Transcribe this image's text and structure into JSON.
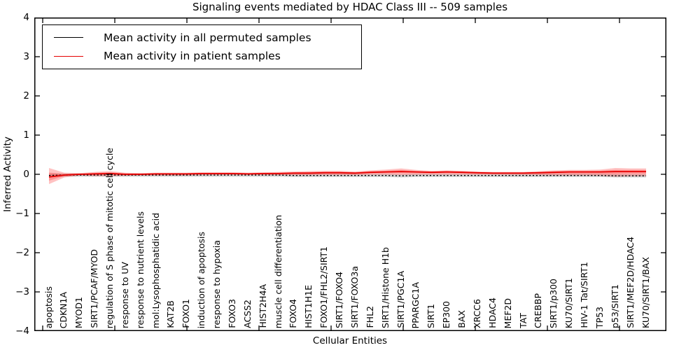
{
  "title": "Signaling events mediated by HDAC Class III -- 509 samples",
  "legend": {
    "items": [
      {
        "label": "Mean activity in all permuted samples",
        "color": "#000000"
      },
      {
        "label": "Mean activity in patient samples",
        "color": "#e60000"
      }
    ]
  },
  "chart_data": {
    "type": "line",
    "title": "Signaling events mediated by HDAC Class III -- 509 samples",
    "xlabel": "Cellular Entities",
    "ylabel": "Inferred Activity",
    "ylim": [
      -4,
      4
    ],
    "grid": false,
    "legend_position": "upper left",
    "yticks": [
      {
        "value": 4,
        "label": "4"
      },
      {
        "value": 3,
        "label": "3"
      },
      {
        "value": 2,
        "label": "2"
      },
      {
        "value": 1,
        "label": "1"
      },
      {
        "value": 0,
        "label": "0"
      },
      {
        "value": -1,
        "label": "−1"
      },
      {
        "value": -2,
        "label": "−2"
      },
      {
        "value": -3,
        "label": "−3"
      },
      {
        "value": -4,
        "label": "−4"
      }
    ],
    "categories": [
      "apoptosis",
      "CDKN1A",
      "MYOD1",
      "SIRT1/PCAF/MYOD",
      "regulation of S phase of mitotic cell cycle",
      "response to UV",
      "response to nutrient levels",
      "mol:Lysophosphatidic acid",
      "KAT2B",
      "FOXO1",
      "induction of apoptosis",
      "response to hypoxia",
      "FOXO3",
      "ACSS2",
      "HIST2H4A",
      "muscle cell differentiation",
      "FOXO4",
      "HIST1H1E",
      "FOXO1/FHL2/SIRT1",
      "SIRT1/FOXO4",
      "SIRT1/FOXO3a",
      "FHL2",
      "SIRT1/Histone H1b",
      "SIRT1/PGC1A",
      "PPARGC1A",
      "SIRT1",
      "EP300",
      "BAX",
      "XRCC6",
      "HDAC4",
      "MEF2D",
      "TAT",
      "CREBBP",
      "SIRT1/p300",
      "KU70/SIRT1",
      "HIV-1 Tat/SIRT1",
      "TP53",
      "p53/SIRT1",
      "SIRT1/MEF2D/HDAC4",
      "KU70/SIRT1/BAX"
    ],
    "series": [
      {
        "name": "Mean activity in all permuted samples",
        "color": "#000000",
        "linestyle": "dotted",
        "band_halfwidth": 0.04,
        "band_color": "rgba(110,110,110,0.30)",
        "values": [
          -0.03,
          -0.02,
          -0.02,
          -0.02,
          -0.02,
          -0.02,
          -0.02,
          -0.02,
          -0.02,
          -0.02,
          -0.02,
          -0.02,
          -0.02,
          -0.02,
          -0.02,
          -0.02,
          -0.03,
          -0.03,
          -0.03,
          -0.03,
          -0.03,
          -0.03,
          -0.03,
          -0.04,
          -0.03,
          -0.03,
          -0.03,
          -0.03,
          -0.03,
          -0.03,
          -0.03,
          -0.03,
          -0.03,
          -0.03,
          -0.03,
          -0.03,
          -0.03,
          -0.04,
          -0.04,
          -0.04
        ]
      },
      {
        "name": "Mean activity in patient samples",
        "color": "#e60000",
        "linestyle": "solid",
        "band_color": "rgba(255,20,20,0.26)",
        "values": [
          -0.07,
          -0.02,
          0.0,
          0.01,
          0.02,
          0.0,
          0.0,
          0.01,
          0.01,
          0.01,
          0.02,
          0.02,
          0.02,
          0.01,
          0.02,
          0.02,
          0.03,
          0.03,
          0.04,
          0.04,
          0.03,
          0.05,
          0.06,
          0.07,
          0.06,
          0.05,
          0.06,
          0.05,
          0.04,
          0.03,
          0.03,
          0.03,
          0.04,
          0.05,
          0.06,
          0.06,
          0.06,
          0.07,
          0.07,
          0.07
        ],
        "band_upper": [
          0.16,
          0.04,
          0.03,
          0.06,
          0.08,
          0.04,
          0.03,
          0.04,
          0.04,
          0.04,
          0.05,
          0.05,
          0.05,
          0.04,
          0.05,
          0.06,
          0.07,
          0.08,
          0.09,
          0.09,
          0.07,
          0.1,
          0.12,
          0.15,
          0.11,
          0.09,
          0.1,
          0.09,
          0.07,
          0.06,
          0.06,
          0.06,
          0.08,
          0.1,
          0.11,
          0.11,
          0.12,
          0.16,
          0.15,
          0.15
        ],
        "band_lower": [
          -0.25,
          -0.08,
          -0.03,
          -0.05,
          -0.05,
          -0.04,
          -0.03,
          -0.03,
          -0.03,
          -0.03,
          -0.02,
          -0.02,
          -0.02,
          -0.02,
          -0.02,
          -0.02,
          -0.02,
          -0.02,
          -0.02,
          -0.02,
          -0.02,
          -0.01,
          -0.01,
          -0.02,
          -0.01,
          -0.01,
          -0.01,
          -0.01,
          -0.01,
          -0.01,
          -0.01,
          -0.01,
          -0.02,
          -0.03,
          -0.03,
          -0.03,
          -0.04,
          -0.06,
          -0.05,
          -0.05
        ]
      }
    ]
  }
}
